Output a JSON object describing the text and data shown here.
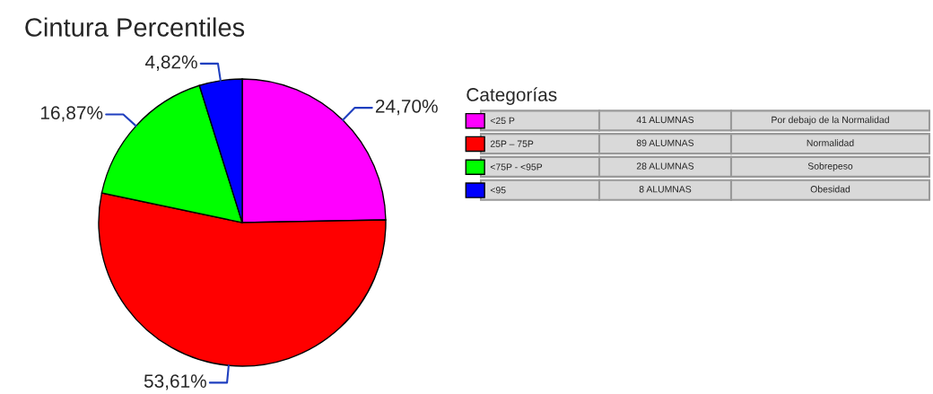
{
  "chart_data": {
    "type": "pie",
    "title": "Cintura Percentiles",
    "categories": [
      "<25 P",
      "25P – 75P",
      "<75P - <95P",
      "<95"
    ],
    "values": [
      24.7,
      53.61,
      16.87,
      4.82
    ],
    "value_labels": [
      "24,70%",
      "53,61%",
      "16,87%",
      "4,82%"
    ],
    "colors": [
      "#ff00ff",
      "#ff0000",
      "#00ff00",
      "#0000ff"
    ],
    "legend": "right",
    "legend_title": "Categorías",
    "annotations": [
      "41 ALUMNAS",
      "Por debajo de la Normalidad",
      "89 ALUMNAS",
      "Normalidad",
      "28 ALUMNAS",
      "Sobrepeso",
      "8 ALUMNAS",
      "Obesidad"
    ]
  }
}
